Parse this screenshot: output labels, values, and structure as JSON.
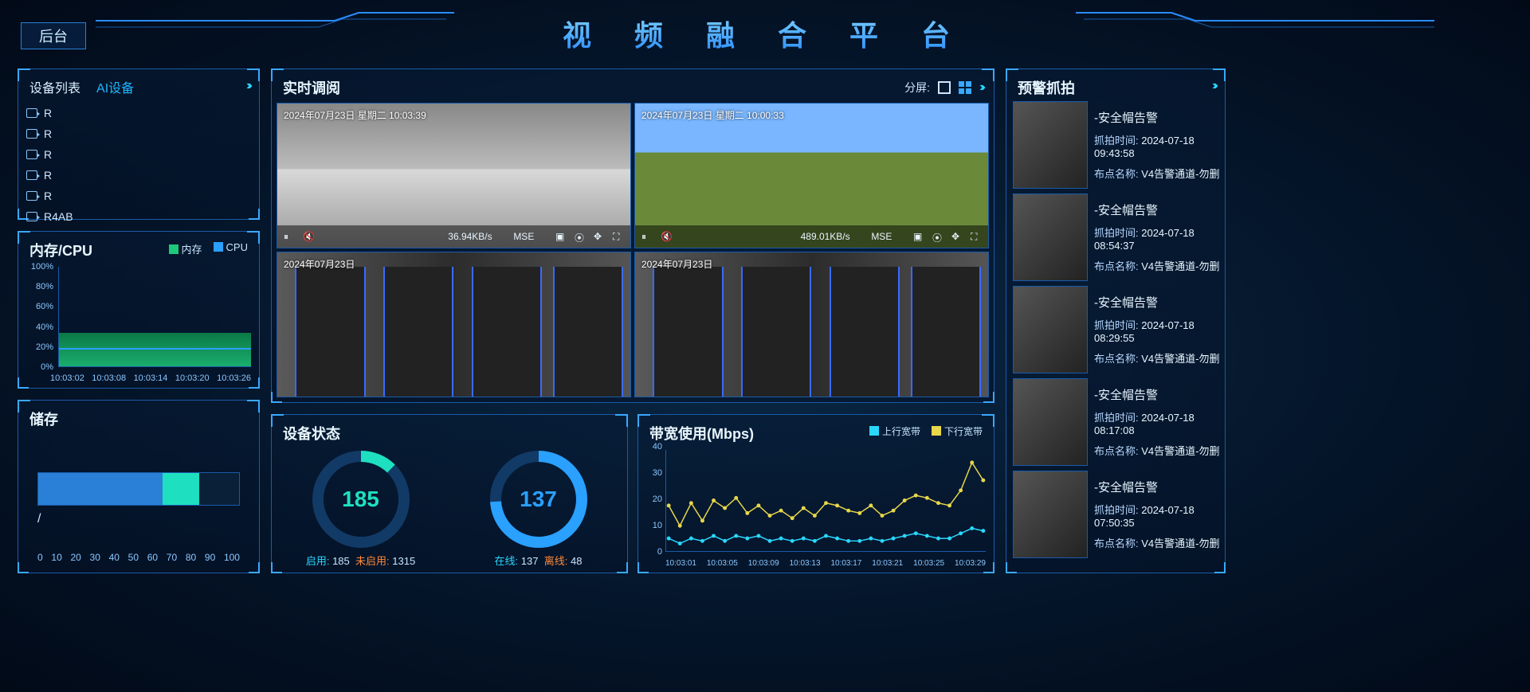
{
  "header": {
    "title": "视 频 融 合 平 台",
    "backstage": "后台"
  },
  "device": {
    "tabs": [
      "设备列表",
      "AI设备"
    ],
    "items": [
      "R",
      "R",
      "R",
      "R",
      "R",
      "R4AB"
    ]
  },
  "memcpu": {
    "title": "内存/CPU",
    "legend": {
      "mem": "内存",
      "cpu": "CPU",
      "mem_color": "#1ec97a",
      "cpu_color": "#2aa0ff"
    },
    "yticks": [
      "100%",
      "80%",
      "60%",
      "40%",
      "20%",
      "0%"
    ],
    "xticks": [
      "10:03:02",
      "10:03:08",
      "10:03:14",
      "10:03:20",
      "10:03:26"
    ],
    "mem_pct": 34,
    "cpu_pct": 17
  },
  "storage": {
    "title": "储存",
    "label": "/",
    "segments": [
      {
        "pct": 62,
        "color": "#2a7fd6"
      },
      {
        "pct": 18,
        "color": "#1ee0c0"
      }
    ],
    "xticks": [
      "0",
      "10",
      "20",
      "30",
      "40",
      "50",
      "60",
      "70",
      "80",
      "90",
      "100"
    ]
  },
  "video": {
    "title": "实时调阅",
    "split_label": "分屏:",
    "feeds": [
      {
        "ts": "2024年07月23日 星期二 10:03:39",
        "rate": "36.94KB/s",
        "proto": "MSE",
        "scene": "A"
      },
      {
        "ts": "2024年07月23日 星期二 10:00:33",
        "rate": "489.01KB/s",
        "proto": "MSE",
        "scene": "B"
      },
      {
        "ts": "2024年07月23日",
        "rate": "",
        "proto": "",
        "scene": "C"
      },
      {
        "ts": "2024年07月23日",
        "rate": "",
        "proto": "",
        "scene": "D"
      }
    ]
  },
  "status": {
    "title": "设备状态",
    "gauge1": {
      "value": 185,
      "max": 1500,
      "color": "#1ee0c0",
      "enabled_lbl": "启用:",
      "enabled": 185,
      "disabled_lbl": "未启用:",
      "disabled": 1315
    },
    "gauge2": {
      "value": 137,
      "max": 185,
      "color": "#2aa0ff",
      "online_lbl": "在线:",
      "online": 137,
      "offline_lbl": "离线:",
      "offline": 48
    }
  },
  "bandwidth": {
    "title": "带宽使用(Mbps)",
    "legend": {
      "up": "上行宽带",
      "down": "下行宽带",
      "up_color": "#2ad8ff",
      "down_color": "#e8d84a"
    },
    "ymax": 40,
    "yticks": [
      "40",
      "30",
      "20",
      "10",
      "0"
    ],
    "xticks": [
      "10:03:01",
      "10:03:05",
      "10:03:09",
      "10:03:13",
      "10:03:17",
      "10:03:21",
      "10:03:25",
      "10:03:29"
    ],
    "down": [
      18,
      10,
      19,
      12,
      20,
      17,
      21,
      15,
      18,
      14,
      16,
      13,
      17,
      14,
      19,
      18,
      16,
      15,
      18,
      14,
      16,
      20,
      22,
      21,
      19,
      18,
      24,
      35,
      28
    ],
    "up": [
      5,
      3,
      5,
      4,
      6,
      4,
      6,
      5,
      6,
      4,
      5,
      4,
      5,
      4,
      6,
      5,
      4,
      4,
      5,
      4,
      5,
      6,
      7,
      6,
      5,
      5,
      7,
      9,
      8
    ]
  },
  "alerts": {
    "title": "预警抓拍",
    "cap_lbl": "抓拍时间:",
    "loc_lbl": "布点名称:",
    "items": [
      {
        "name": "-安全帽告警",
        "time": "2024-07-18 09:43:58",
        "loc": "V4告警通道-勿删"
      },
      {
        "name": "-安全帽告警",
        "time": "2024-07-18 08:54:37",
        "loc": "V4告警通道-勿删"
      },
      {
        "name": "-安全帽告警",
        "time": "2024-07-18 08:29:55",
        "loc": "V4告警通道-勿删"
      },
      {
        "name": "-安全帽告警",
        "time": "2024-07-18 08:17:08",
        "loc": "V4告警通道-勿删"
      },
      {
        "name": "-安全帽告警",
        "time": "2024-07-18 07:50:35",
        "loc": "V4告警通道-勿删"
      }
    ]
  }
}
